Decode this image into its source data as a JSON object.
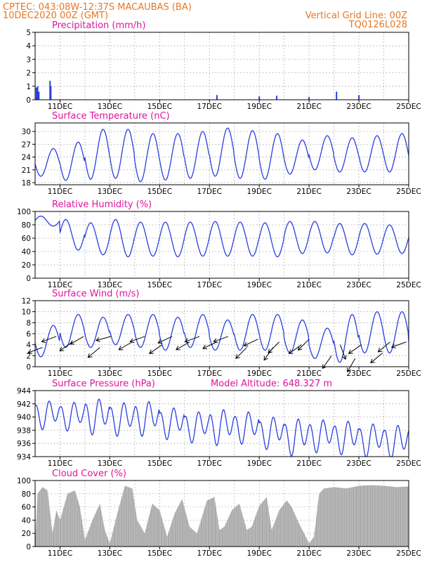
{
  "header": {
    "line1": "CPTEC:   043:08W-12:37S   MACAUBAS (BA)",
    "line2": "10DEC2020 00Z (GMT)",
    "grid_note": "Vertical Grid Line: 00Z",
    "code": "TQ0126L028"
  },
  "colors": {
    "series": "#2a3fe0",
    "cloud": "#a8a8a8",
    "header": "#e87722",
    "title": "#e0149c"
  },
  "x_axis": {
    "start": "10DEC2020 00Z",
    "end": "25DEC2020 00Z",
    "tick_labels": [
      "11DEC",
      "13DEC",
      "15DEC",
      "17DEC",
      "19DEC",
      "21DEC",
      "23DEC",
      "25DEC"
    ],
    "tick_days": [
      1,
      3,
      5,
      7,
      9,
      11,
      13,
      15
    ]
  },
  "chart_data": [
    {
      "type": "bar",
      "title": "Precipitation (mm/h)",
      "ylim": [
        0,
        5
      ],
      "yticks": [
        "0",
        "1",
        "2",
        "3",
        "4",
        "5"
      ],
      "x_unit": "days since 10DEC 00Z",
      "points": [
        [
          0.05,
          0.9
        ],
        [
          0.1,
          1.0
        ],
        [
          0.15,
          0.6
        ],
        [
          0.6,
          1.4
        ],
        [
          0.63,
          1.0
        ],
        [
          7.3,
          0.35
        ],
        [
          9.0,
          0.25
        ],
        [
          9.7,
          0.3
        ],
        [
          11.0,
          0.2
        ],
        [
          12.1,
          0.6
        ],
        [
          13.0,
          0.35
        ]
      ]
    },
    {
      "type": "line",
      "title": "Surface Temperature (nC)",
      "ylim": [
        17.5,
        32
      ],
      "yticks": [
        "18",
        "21",
        "24",
        "27",
        "30"
      ],
      "x_unit": "days since 10DEC 00Z",
      "daily_max": [
        26.0,
        27.5,
        30.5,
        30.5,
        29.5,
        29.5,
        30.0,
        30.8,
        30.2,
        29.5,
        28.0,
        29.0,
        28.5,
        29.0,
        29.5,
        28.0
      ],
      "daily_min": [
        19.5,
        18.5,
        18.8,
        19.0,
        18.2,
        18.6,
        19.0,
        19.5,
        19.0,
        18.8,
        20.0,
        21.0,
        20.5,
        20.5,
        20.5,
        21.5
      ]
    },
    {
      "type": "line",
      "title": "Relative Humidity (%)",
      "ylim": [
        0,
        100
      ],
      "yticks": [
        "0",
        "20",
        "40",
        "60",
        "80",
        "100"
      ],
      "x_unit": "days since 10DEC 00Z",
      "daily_max": [
        93,
        88,
        83,
        88,
        84,
        84,
        84,
        85,
        84,
        83,
        85,
        85,
        82,
        82,
        80,
        78
      ],
      "daily_min": [
        78,
        42,
        35,
        32,
        33,
        32,
        33,
        33,
        33,
        32,
        37,
        38,
        35,
        36,
        37,
        40
      ]
    },
    {
      "type": "line",
      "title": "Surface Wind (m/s)",
      "ylim": [
        0,
        12
      ],
      "yticks": [
        "0",
        "2",
        "4",
        "6",
        "8",
        "10",
        "12"
      ],
      "x_unit": "days since 10DEC 00Z",
      "daily_max": [
        7.5,
        9.5,
        9.0,
        9.5,
        9.5,
        9.0,
        9.5,
        8.5,
        9.5,
        9.5,
        8.5,
        7.0,
        9.5,
        10.0,
        10.0,
        6.5
      ],
      "daily_min": [
        1.8,
        3.5,
        3.5,
        4.0,
        3.5,
        3.0,
        3.5,
        3.0,
        3.0,
        3.0,
        2.5,
        1.5,
        0.8,
        2.5,
        2.5,
        3.0
      ],
      "arrows": [
        [
          0.3,
          3.5,
          250
        ],
        [
          0.85,
          5.5,
          250
        ],
        [
          1.5,
          4.5,
          235
        ],
        [
          1.95,
          5.5,
          240
        ],
        [
          2.6,
          3.5,
          230
        ],
        [
          3.05,
          5.5,
          255
        ],
        [
          3.9,
          4.5,
          240
        ],
        [
          4.4,
          5.5,
          250
        ],
        [
          5.1,
          4.0,
          235
        ],
        [
          5.5,
          5.5,
          245
        ],
        [
          6.2,
          4.5,
          240
        ],
        [
          6.6,
          5.5,
          250
        ],
        [
          7.3,
          4.5,
          245
        ],
        [
          7.75,
          5.5,
          250
        ],
        [
          8.5,
          3.5,
          225
        ],
        [
          8.95,
          5.0,
          245
        ],
        [
          9.55,
          3.5,
          215
        ],
        [
          9.8,
          4.5,
          225
        ],
        [
          10.7,
          4.0,
          235
        ],
        [
          11.0,
          5.0,
          225
        ],
        [
          11.9,
          2.0,
          215
        ],
        [
          12.25,
          4.0,
          160
        ],
        [
          12.85,
          1.5,
          210
        ],
        [
          13.1,
          4.0,
          235
        ],
        [
          13.95,
          2.5,
          230
        ],
        [
          14.25,
          4.5,
          230
        ],
        [
          14.9,
          4.5,
          250
        ]
      ]
    },
    {
      "type": "line",
      "title": "Surface Pressure (hPa)",
      "annotation": "Model Altitude: 648.327 m",
      "ylim": [
        934,
        944
      ],
      "yticks": [
        "934",
        "936",
        "938",
        "940",
        "942",
        "944"
      ],
      "x_unit": "days since 10DEC 00Z",
      "daily_max": [
        942.8,
        942.6,
        943.2,
        942.6,
        942.8,
        941.8,
        941.2,
        941.6,
        941.2,
        940.4,
        940.2,
        940.0,
        939.8,
        939.4,
        939.2,
        939.0
      ],
      "daily_min": [
        938.0,
        937.8,
        937.2,
        937.0,
        937.0,
        936.5,
        936.0,
        935.6,
        935.8,
        935.0,
        934.0,
        934.5,
        934.2,
        933.8,
        933.5,
        934.5
      ]
    },
    {
      "type": "area",
      "title": "Cloud Cover (%)",
      "ylim": [
        0,
        100
      ],
      "yticks": [
        "0",
        "20",
        "40",
        "60",
        "80",
        "100"
      ],
      "x_unit": "days since 10DEC 00Z",
      "points": [
        [
          0.0,
          5
        ],
        [
          0.1,
          80
        ],
        [
          0.3,
          90
        ],
        [
          0.5,
          85
        ],
        [
          0.7,
          20
        ],
        [
          0.85,
          55
        ],
        [
          1.0,
          40
        ],
        [
          1.3,
          80
        ],
        [
          1.6,
          85
        ],
        [
          1.8,
          60
        ],
        [
          2.0,
          10
        ],
        [
          2.3,
          40
        ],
        [
          2.6,
          65
        ],
        [
          2.8,
          25
        ],
        [
          3.0,
          5
        ],
        [
          3.3,
          50
        ],
        [
          3.6,
          92
        ],
        [
          3.9,
          88
        ],
        [
          4.1,
          40
        ],
        [
          4.4,
          20
        ],
        [
          4.7,
          65
        ],
        [
          5.0,
          55
        ],
        [
          5.3,
          15
        ],
        [
          5.6,
          50
        ],
        [
          5.9,
          72
        ],
        [
          6.2,
          30
        ],
        [
          6.5,
          20
        ],
        [
          6.9,
          70
        ],
        [
          7.2,
          75
        ],
        [
          7.4,
          25
        ],
        [
          7.6,
          30
        ],
        [
          7.9,
          55
        ],
        [
          8.2,
          65
        ],
        [
          8.5,
          25
        ],
        [
          8.7,
          30
        ],
        [
          9.0,
          62
        ],
        [
          9.3,
          75
        ],
        [
          9.5,
          25
        ],
        [
          9.8,
          55
        ],
        [
          10.1,
          70
        ],
        [
          10.3,
          60
        ],
        [
          10.6,
          35
        ],
        [
          10.8,
          20
        ],
        [
          11.0,
          5
        ],
        [
          11.2,
          15
        ],
        [
          11.4,
          80
        ],
        [
          11.6,
          88
        ],
        [
          12.0,
          90
        ],
        [
          12.5,
          88
        ],
        [
          13.0,
          92
        ],
        [
          13.5,
          93
        ],
        [
          14.0,
          92
        ],
        [
          14.5,
          90
        ],
        [
          15.0,
          91
        ]
      ]
    }
  ]
}
